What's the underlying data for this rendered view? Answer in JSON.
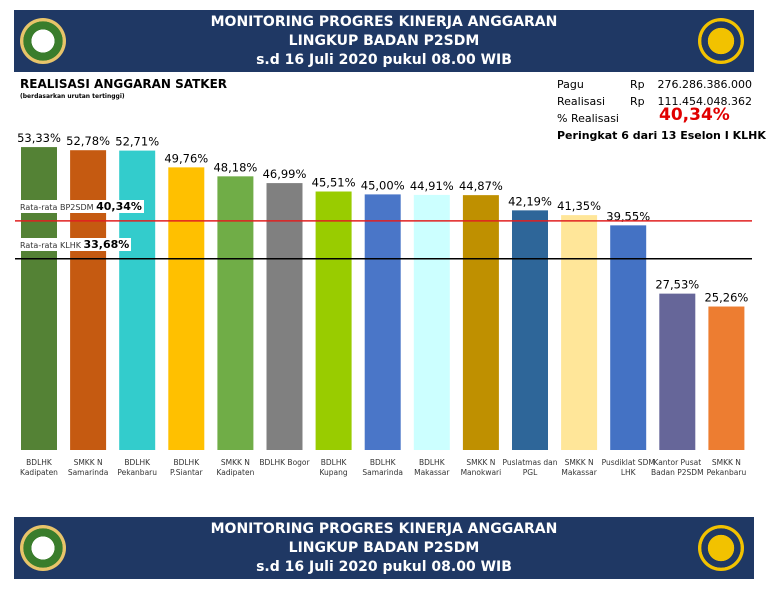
{
  "header": {
    "line1": "MONITORING PROGRES KINERJA ANGGARAN",
    "line2": "LINGKUP BADAN P2SDM",
    "line3": "s.d 16 Juli 2020 pukul 08.00 WIB"
  },
  "summary": {
    "pagu_label": "Pagu",
    "pagu_cur": "Rp",
    "pagu_value": "276.286.386.000",
    "real_label": "Realisasi",
    "real_cur": "Rp",
    "real_value": "111.454.048.362",
    "pct_label": "% Realisasi",
    "pct_value": "40,34%",
    "rank": "Peringkat 6 dari 13 Eselon I KLHK"
  },
  "chart_data": {
    "type": "bar",
    "title": "REALISASI ANGGARAN SATKER",
    "subtitle": "(berdasarkan urutan tertinggi)",
    "categories": [
      "BDLHK|Kadipaten",
      "SMKK N|Samarinda",
      "BDLHK|Pekanbaru",
      "BDLHK|P.Siantar",
      "SMKK N|Kadipaten",
      "BDLHK Bogor",
      "BDLHK|Kupang",
      "BDLHK|Samarinda",
      "BDLHK|Makassar",
      "SMKK N|Manokwari",
      "Puslatmas dan|PGL",
      "SMKK N|Makassar",
      "Pusdiklat SDM|LHK",
      "Kantor Pusat|Badan P2SDM",
      "SMKK N|Pekanbaru"
    ],
    "values": [
      53.33,
      52.78,
      52.71,
      49.76,
      48.18,
      46.99,
      45.51,
      45.0,
      44.91,
      44.87,
      42.19,
      41.35,
      39.55,
      27.53,
      25.26
    ],
    "labels": [
      "53,33%",
      "52,78%",
      "52,71%",
      "49,76%",
      "48,18%",
      "46,99%",
      "45,51%",
      "45,00%",
      "44,91%",
      "44,87%",
      "42,19%",
      "41,35%",
      "39,55%",
      "27,53%",
      "25,26%"
    ],
    "colors": [
      "#548235",
      "#c55a11",
      "#33cccc",
      "#ffc000",
      "#70ad47",
      "#808080",
      "#99cc00",
      "#4a76c8",
      "#ccffff",
      "#bf9000",
      "#2e6699",
      "#ffe699",
      "#4472c4",
      "#666699",
      "#ed7d31"
    ],
    "ylim": [
      0,
      100
    ],
    "reference_lines": [
      {
        "name": "Rata-rata BP2SDM",
        "value": 40.34,
        "label": "40,34%",
        "color": "#e02020"
      },
      {
        "name": "Rata-rata KLHK",
        "value": 33.68,
        "label": "33,68%",
        "color": "#000000"
      }
    ]
  },
  "footer": {
    "line1": "MONITORING PROGRES KINERJA ANGGARAN",
    "line2": "LINGKUP BADAN P2SDM",
    "line3": "s.d 16 Juli 2020 pukul 08.00 WIB"
  }
}
